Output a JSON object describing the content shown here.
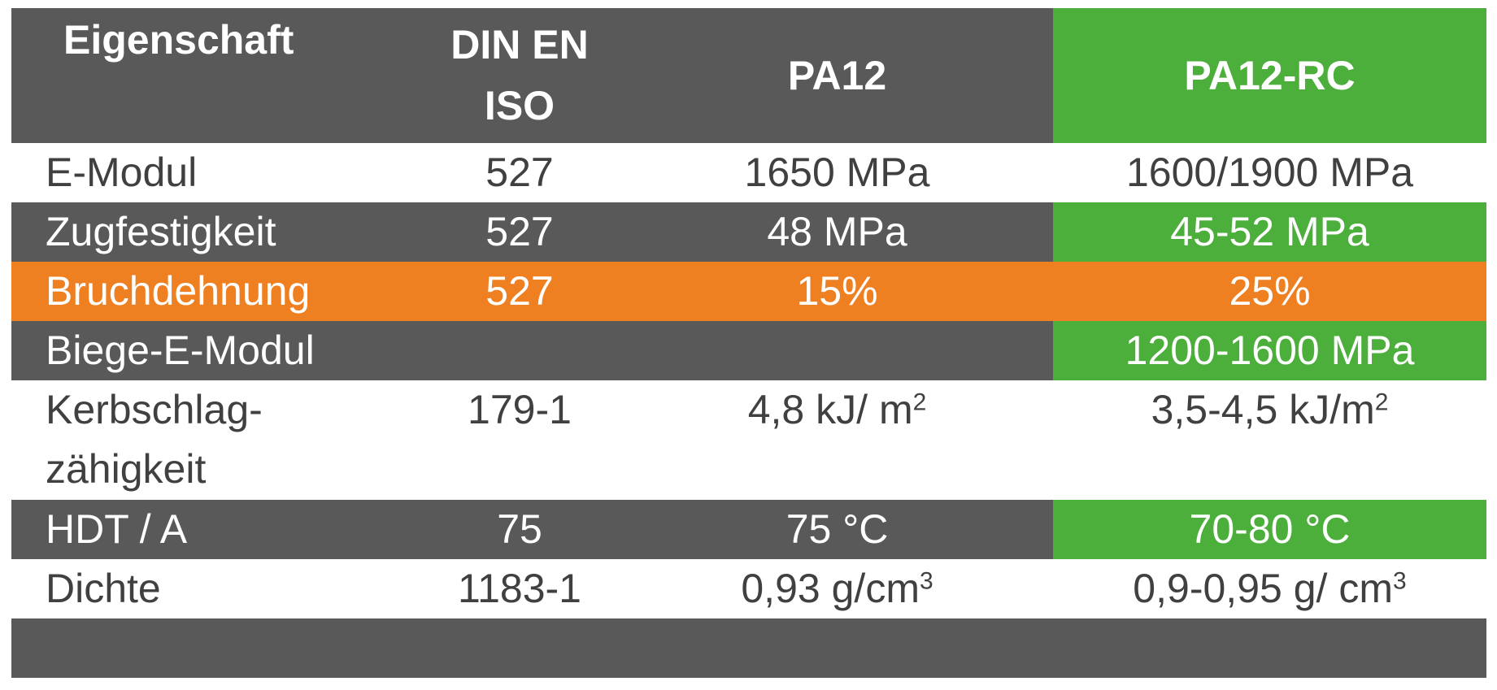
{
  "table": {
    "headers": [
      "Eigenschaft",
      "DIN EN ISO",
      "PA12",
      "PA12-RC"
    ],
    "rows": [
      {
        "label": "E-Modul",
        "norm": "527",
        "pa12": "1650 MPa",
        "pa12rc": "1600/1900 MPa",
        "style": "light"
      },
      {
        "label": "Zugfestigkeit",
        "norm": "527",
        "pa12": "48 MPa",
        "pa12rc": "45-52 MPa",
        "style": "dark"
      },
      {
        "label": "Bruchdehnung",
        "norm": "527",
        "pa12": "15%",
        "pa12rc": "25%",
        "style": "orange"
      },
      {
        "label": "Biege-E-Modul",
        "norm": "",
        "pa12": "",
        "pa12rc": "1200-1600 MPa",
        "style": "dark"
      },
      {
        "label": "Kerbschlag-zähigkeit",
        "norm": "179-1",
        "pa12": "4,8 kJ/ m²",
        "pa12rc": "3,5-4,5 kJ/m²",
        "style": "light"
      },
      {
        "label": "HDT / A",
        "norm": "75",
        "pa12": "75 °C",
        "pa12rc": "70-80 °C",
        "style": "dark"
      },
      {
        "label": "Dichte",
        "norm": "1183-1",
        "pa12": "0,93 g/cm³",
        "pa12rc": "0,9-0,95 g/ cm³",
        "style": "light"
      }
    ]
  },
  "colors": {
    "header_bg": "#595959",
    "accent_green": "#4caf3c",
    "accent_orange": "#ee8022",
    "text_dark": "#404040",
    "text_light": "#ffffff"
  }
}
